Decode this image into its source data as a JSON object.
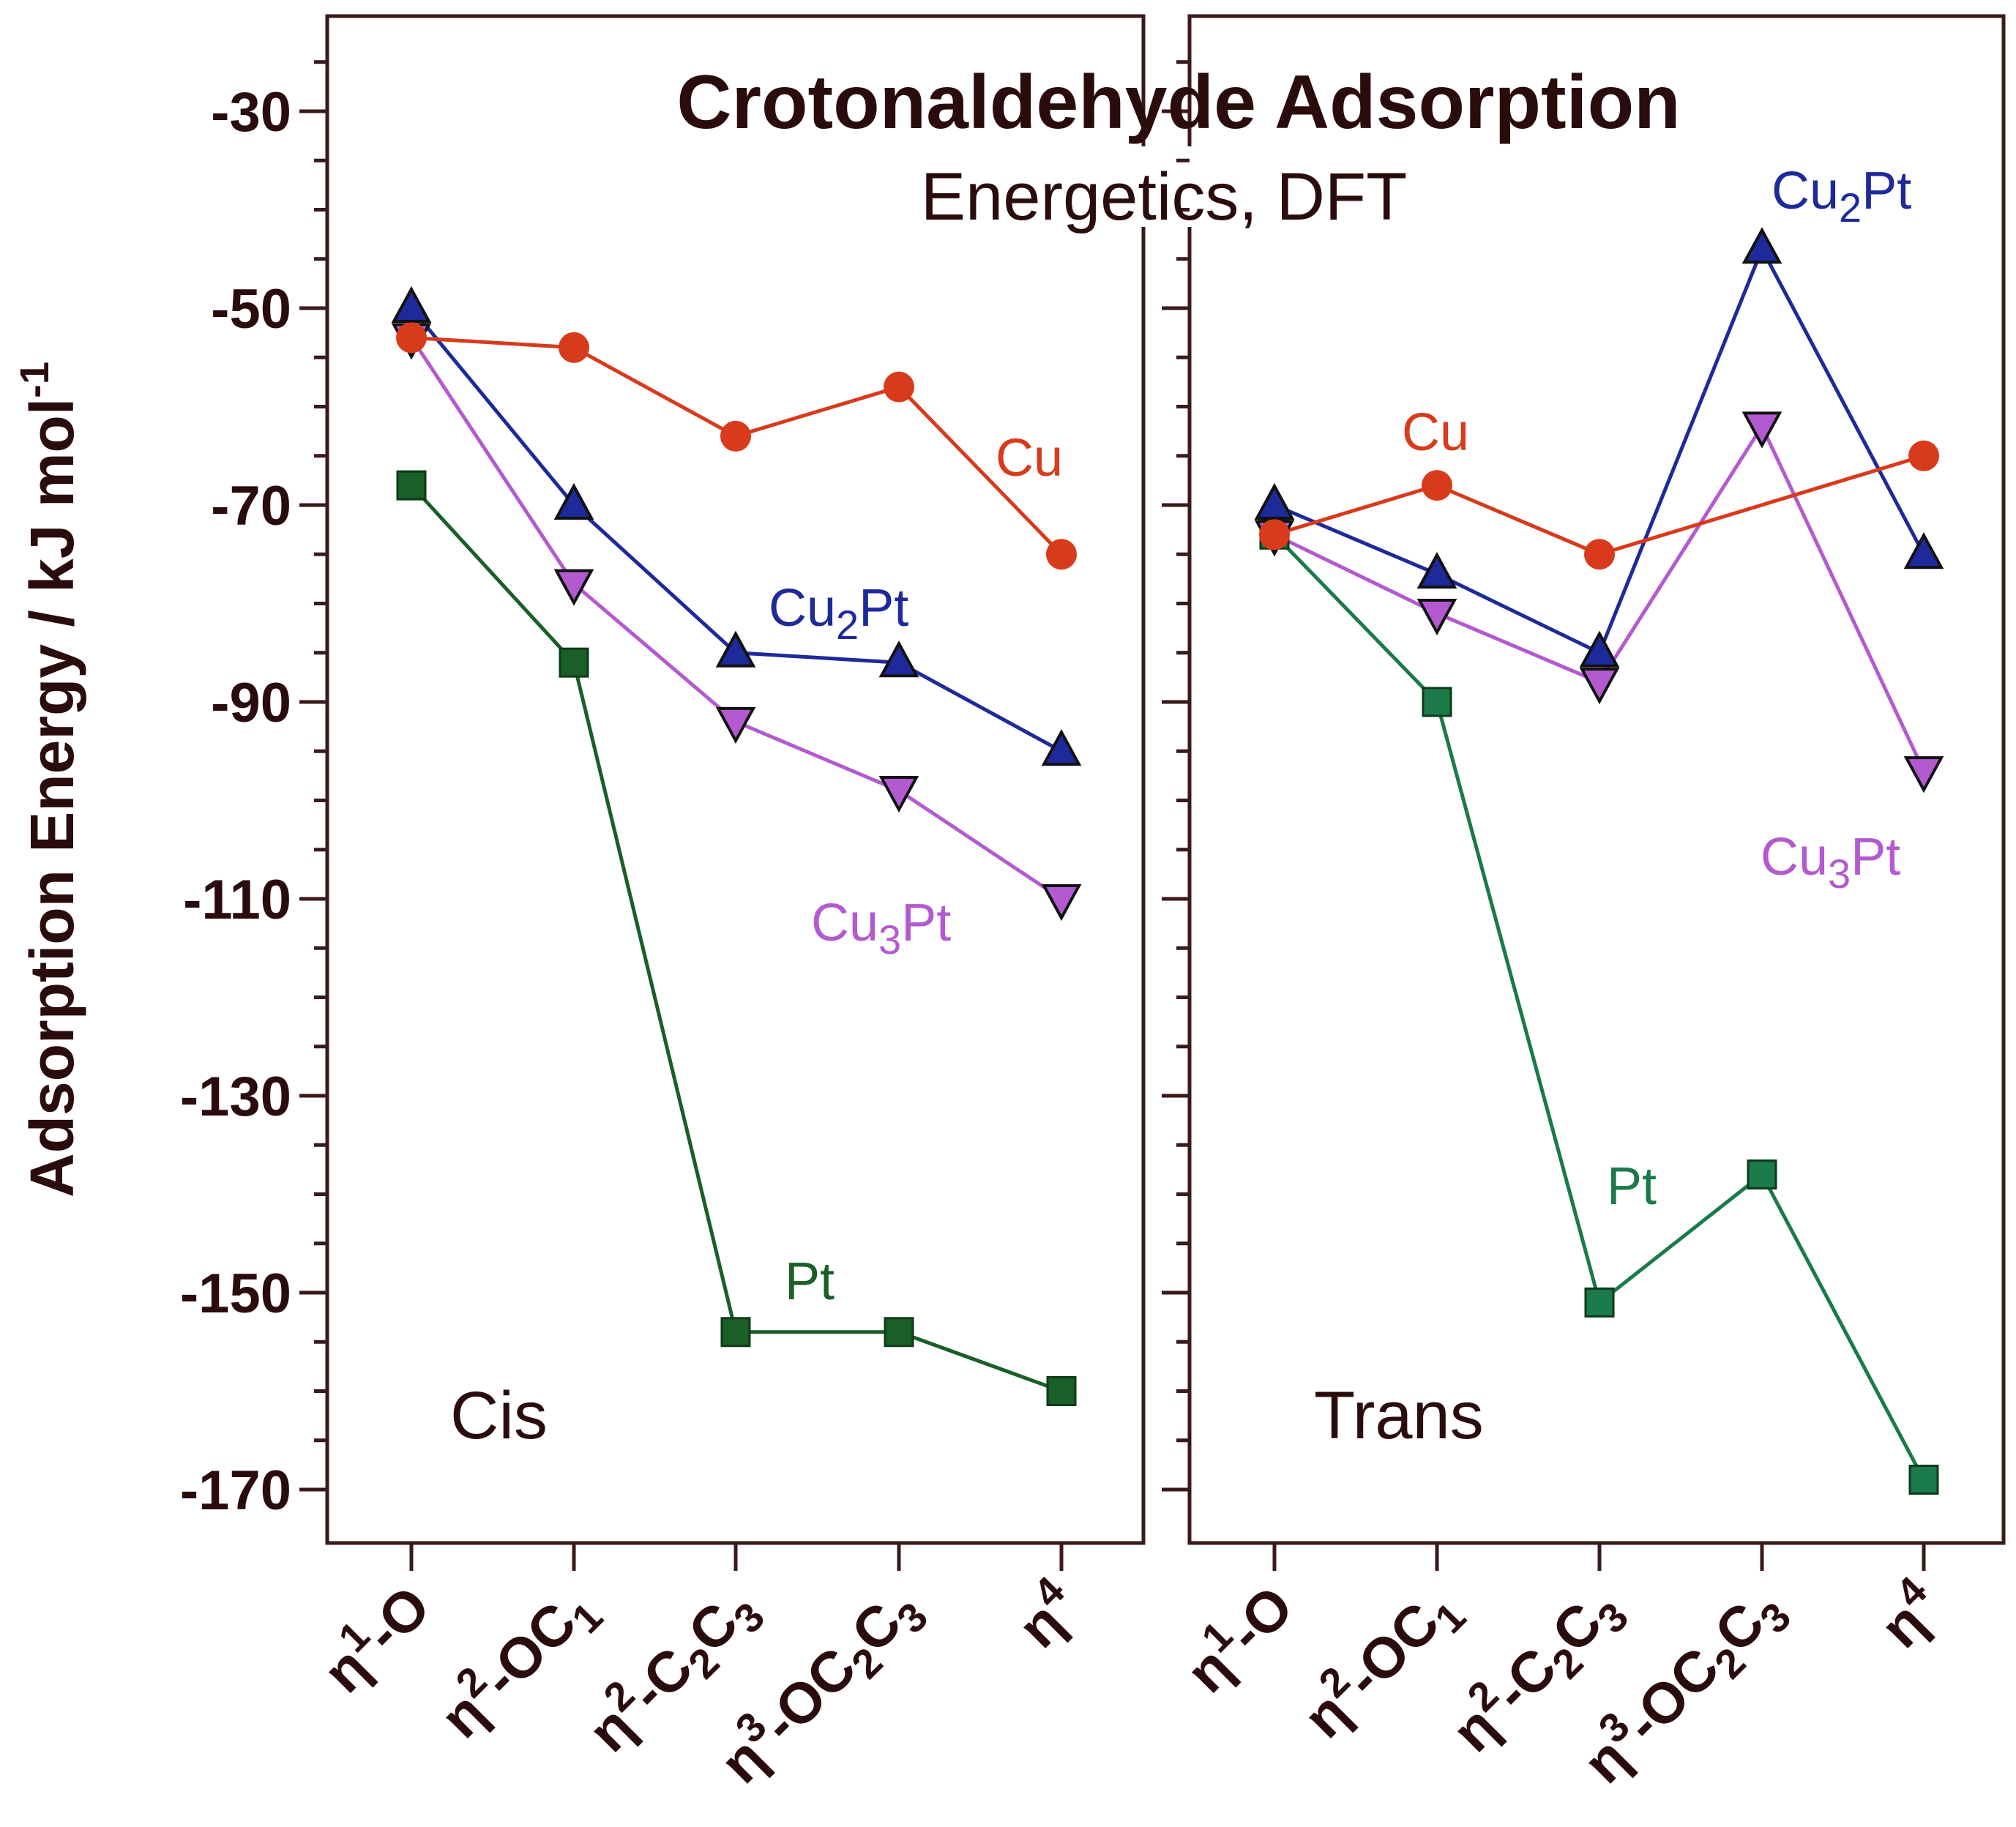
{
  "chart_data": {
    "type": "line",
    "title": "Crotonaldehyde Adsorption",
    "subtitle": "Energetics, DFT",
    "ylabel": "Adsorption Energy / kJ mol",
    "ylabel_sup": "-1",
    "ylim": [
      -175,
      -22
    ],
    "yticks": [
      -30,
      -50,
      -70,
      -90,
      -110,
      -130,
      -150,
      -170
    ],
    "categories": [
      {
        "base": "η",
        "sup": "1",
        "rest": "-O",
        "sub": "",
        "rest2": ""
      },
      {
        "base": "η",
        "sup": "2",
        "rest": "-OC",
        "sub": "1",
        "rest2": ""
      },
      {
        "base": "η",
        "sup": "2",
        "rest": "-C",
        "sub": "2",
        "rest2": "C3"
      },
      {
        "base": "η",
        "sup": "3",
        "rest": "-OC",
        "sub": "2",
        "rest2": "C3"
      },
      {
        "base": "η",
        "sup": "4",
        "rest": "",
        "sub": "",
        "rest2": ""
      }
    ],
    "panels": [
      {
        "name": "Cis",
        "series": [
          {
            "name": "Cu",
            "color": "#d83a1c",
            "marker": "circle",
            "values": [
              -53,
              -54,
              -63,
              -58,
              -75
            ]
          },
          {
            "name": "Cu2Pt",
            "color": "#1e2a9a",
            "marker": "triangle-up",
            "values": [
              -50,
              -70,
              -85,
              -86,
              -95
            ]
          },
          {
            "name": "Cu3Pt",
            "color": "#b35ad0",
            "marker": "triangle-down",
            "values": [
              -53,
              -78,
              -92,
              -99,
              -110
            ]
          },
          {
            "name": "Pt",
            "color": "#1a5e28",
            "marker": "square",
            "values": [
              -68,
              -86,
              -154,
              -154,
              -160
            ]
          }
        ]
      },
      {
        "name": "Trans",
        "series": [
          {
            "name": "Cu",
            "color": "#d83a1c",
            "marker": "circle",
            "values": [
              -73,
              -68,
              -75,
              null,
              -65
            ]
          },
          {
            "name": "Cu2Pt",
            "color": "#1e2a9a",
            "marker": "triangle-up",
            "values": [
              -70,
              -77,
              -85,
              -44,
              -75
            ]
          },
          {
            "name": "Cu3Pt",
            "color": "#b35ad0",
            "marker": "triangle-down",
            "values": [
              -73,
              -81,
              -88,
              -62,
              -97
            ]
          },
          {
            "name": "Pt",
            "color": "#1a7a4a",
            "marker": "square",
            "values": [
              -73,
              -90,
              -151,
              -138,
              -169
            ]
          }
        ]
      }
    ],
    "labels": {
      "cis": {
        "cu": "Cu",
        "cu2pt_base": "Cu",
        "cu2pt_sub": "2",
        "cu2pt_end": "Pt",
        "cu3pt_base": "Cu",
        "cu3pt_sub": "3",
        "cu3pt_end": "Pt",
        "pt": "Pt"
      },
      "trans": {
        "cu": "Cu",
        "cu2pt_base": "Cu",
        "cu2pt_sub": "2",
        "cu2pt_end": "Pt",
        "cu3pt_base": "Cu",
        "cu3pt_sub": "3",
        "cu3pt_end": "Pt",
        "pt": "Pt"
      }
    }
  }
}
